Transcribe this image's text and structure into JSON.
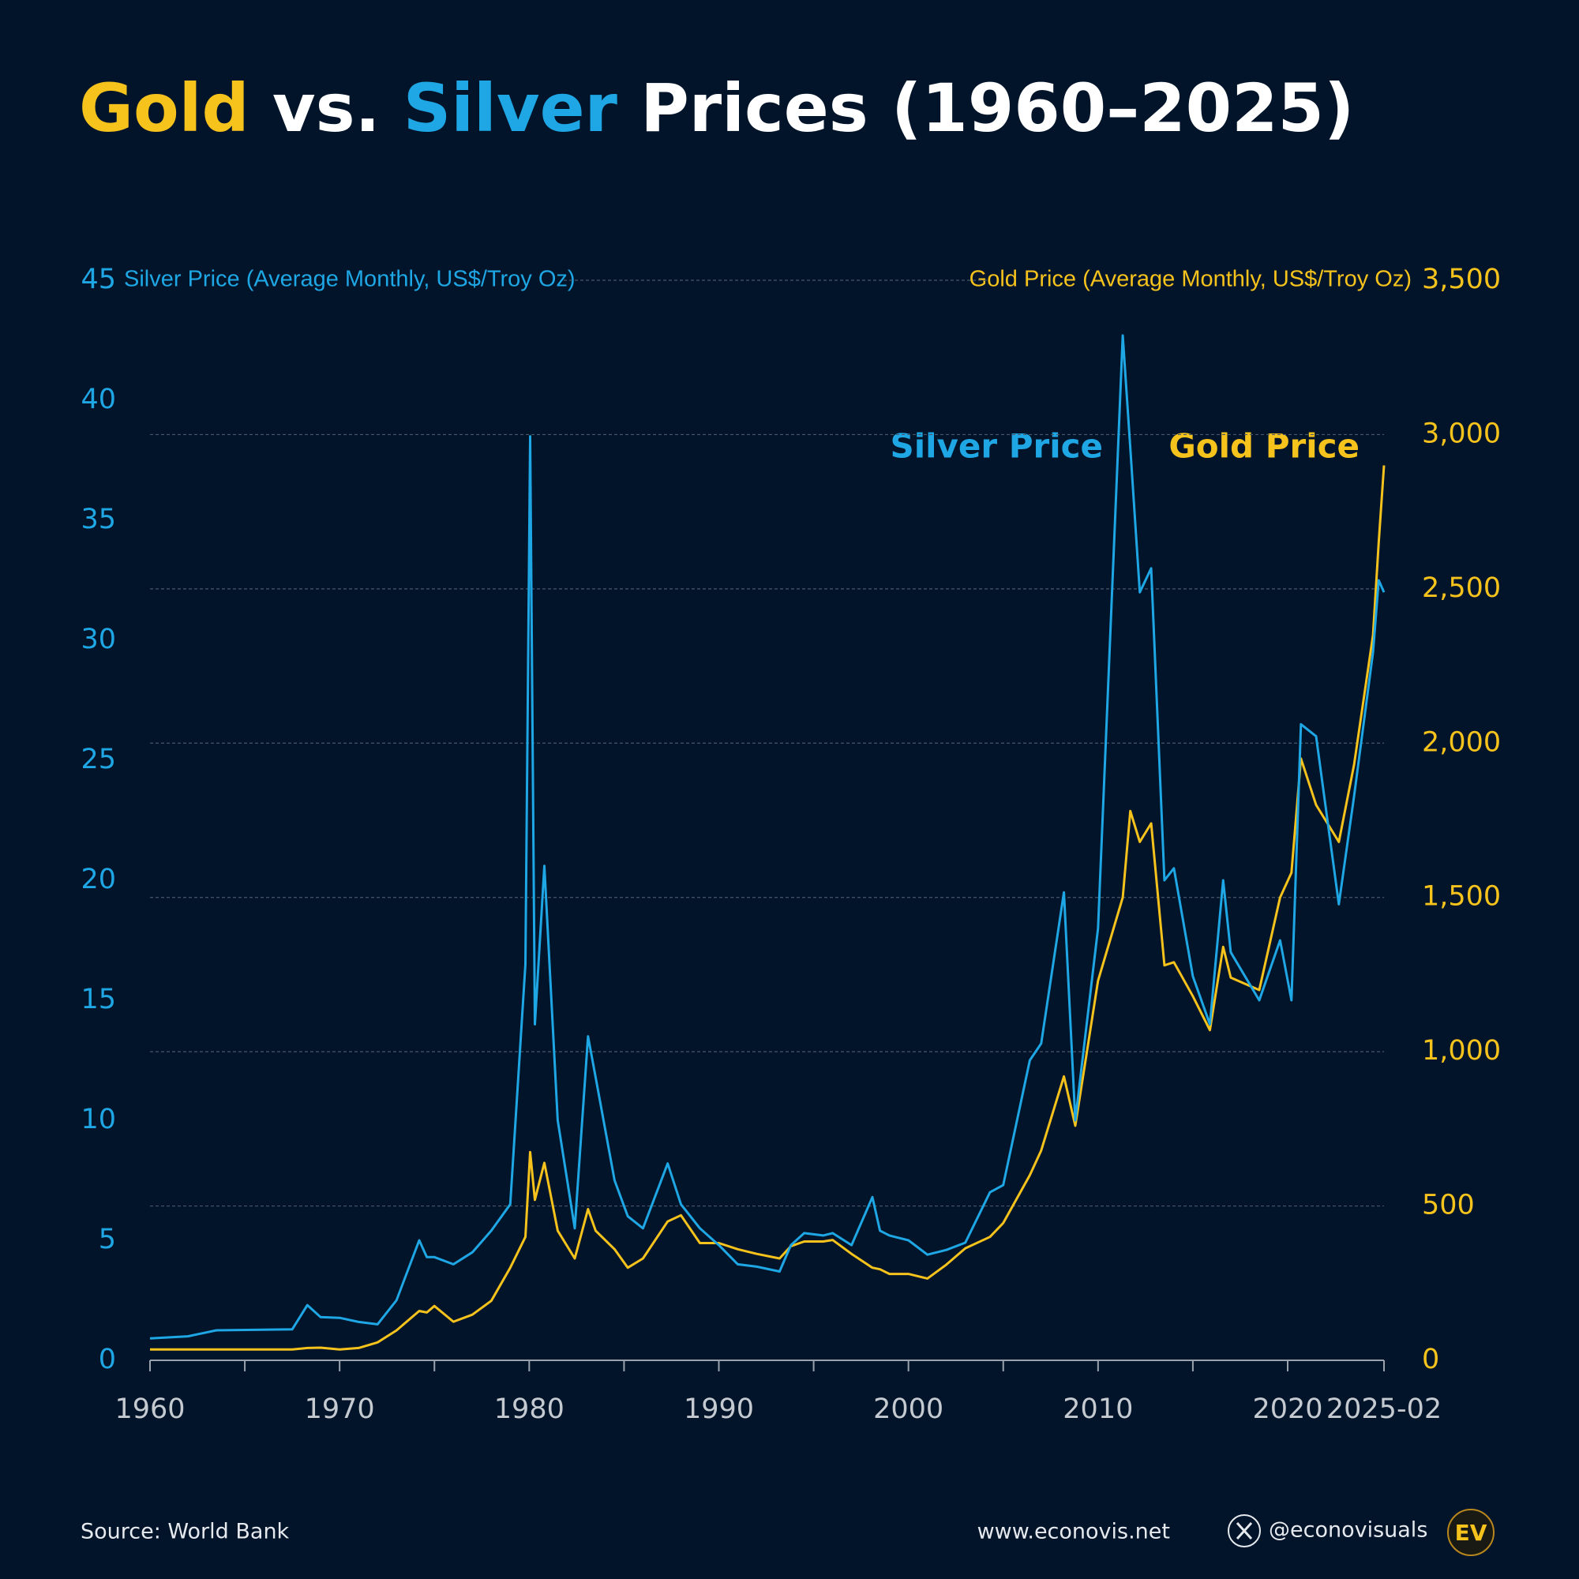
{
  "chart_data": {
    "type": "line",
    "title": [
      {
        "text": "Gold",
        "color": "#f6c21c"
      },
      {
        "text": " vs. ",
        "color": "#ffffff"
      },
      {
        "text": "Silver",
        "color": "#1ea7e4"
      },
      {
        "text": " Prices (1960–2025)",
        "color": "#ffffff"
      }
    ],
    "y_label": "Silver Price (Average Monthly, US$/Troy Oz)",
    "y2_label": "Gold Price (Average Monthly, US$/Troy Oz)",
    "annotations": [
      "Silver Price",
      "Gold Price"
    ],
    "source": "Source: World Bank",
    "website": "www.econovis.net",
    "handle": "@econovisuals",
    "logo": "EV",
    "x": [
      1960,
      1962,
      1963.5,
      1967.5,
      1968.3,
      1969,
      1970,
      1971,
      1972,
      1973,
      1974.2,
      1974.6,
      1975,
      1976,
      1977,
      1978,
      1979,
      1979.8,
      1980.05,
      1980.3,
      1980.8,
      1981.5,
      1982.4,
      1983.1,
      1983.5,
      1984.5,
      1985.2,
      1986,
      1987.3,
      1988,
      1989,
      1990,
      1991,
      1992,
      1993.2,
      1993.8,
      1994.5,
      1995.5,
      1996,
      1997,
      1998.1,
      1998.5,
      1999,
      2000,
      2001,
      2002,
      2003,
      2004.3,
      2005,
      2006.4,
      2007,
      2008.2,
      2008.8,
      2010,
      2011.3,
      2011.7,
      2012.2,
      2012.8,
      2013.5,
      2014,
      2015,
      2015.9,
      2016.6,
      2017,
      2018.5,
      2019.6,
      2020.2,
      2020.7,
      2021.5,
      2022.7,
      2023.5,
      2024.5,
      2024.8,
      2025.08
    ],
    "series": [
      {
        "name": "Silver Price",
        "color": "#1ea7e4",
        "axis": "y",
        "values": [
          0.91,
          1.0,
          1.25,
          1.29,
          2.3,
          1.8,
          1.77,
          1.6,
          1.5,
          2.5,
          5.0,
          4.3,
          4.3,
          4.0,
          4.5,
          5.4,
          6.5,
          16.5,
          38.5,
          14,
          20.6,
          10,
          5.5,
          13.5,
          11.8,
          7.5,
          6,
          5.5,
          8.2,
          6.5,
          5.5,
          4.8,
          4.0,
          3.9,
          3.7,
          4.8,
          5.3,
          5.2,
          5.3,
          4.8,
          6.8,
          5.4,
          5.2,
          5.0,
          4.4,
          4.6,
          4.9,
          7.0,
          7.3,
          12.5,
          13.2,
          19.5,
          10,
          18,
          42.7,
          38,
          32,
          33,
          20,
          20.5,
          16,
          14,
          20,
          17,
          15,
          17.5,
          15,
          26.5,
          26,
          19,
          23.5,
          29.5,
          32.5,
          32
        ]
      },
      {
        "name": "Gold Price",
        "color": "#f6c21c",
        "axis": "y2",
        "values": [
          35,
          35,
          35,
          35,
          40,
          41,
          35,
          40,
          58,
          97,
          160,
          155,
          176,
          125,
          148,
          193,
          300,
          400,
          675,
          520,
          640,
          420,
          330,
          490,
          420,
          360,
          300,
          330,
          450,
          470,
          380,
          380,
          360,
          345,
          330,
          370,
          385,
          385,
          390,
          345,
          300,
          295,
          280,
          280,
          265,
          310,
          363,
          400,
          445,
          600,
          680,
          920,
          760,
          1230,
          1500,
          1780,
          1680,
          1740,
          1280,
          1290,
          1180,
          1070,
          1340,
          1240,
          1200,
          1500,
          1580,
          1950,
          1800,
          1680,
          1930,
          2350,
          2650,
          2900
        ]
      }
    ],
    "xlim": [
      1960,
      2025.08
    ],
    "xticks": [
      1960,
      1970,
      1980,
      1990,
      2000,
      2010,
      2020,
      {
        "value": 2025.08,
        "label": "2025-02"
      }
    ],
    "xticks_minor": [
      1965,
      1975,
      1985,
      1995,
      2005,
      2015
    ],
    "ylim": [
      0,
      45
    ],
    "yticks": [
      0,
      5,
      10,
      15,
      20,
      25,
      30,
      35,
      40,
      45
    ],
    "y2lim": [
      0,
      3500
    ],
    "y2ticks": [
      0,
      500,
      {
        "value": 1000,
        "label": "1,000"
      },
      {
        "value": 1500,
        "label": "1,500"
      },
      {
        "value": 2000,
        "label": "2,000"
      },
      {
        "value": 2500,
        "label": "2,500"
      },
      {
        "value": 3000,
        "label": "3,000"
      },
      {
        "value": 3500,
        "label": "3,500"
      }
    ],
    "grid": true
  }
}
